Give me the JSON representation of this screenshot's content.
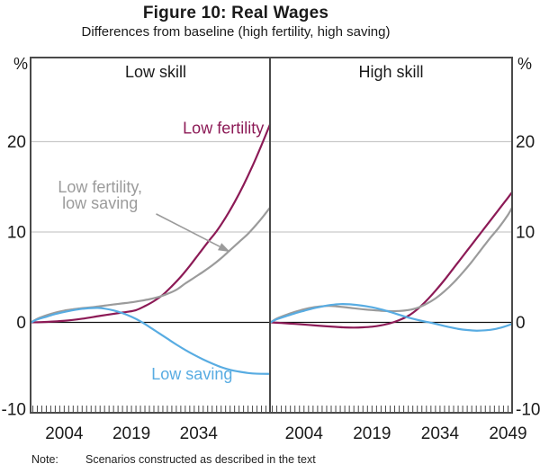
{
  "header": {
    "title": "Figure 10: Real Wages",
    "subtitle": "Differences from baseline (high fertility, high saving)"
  },
  "note": {
    "label": "Note:",
    "text": "Scenarios constructed as described in the text"
  },
  "colors": {
    "crimson": "#8C1A56",
    "gray": "#9B9B9B",
    "blue": "#58ACE2",
    "grid": "#C9C9C9",
    "axis": "#4A4A4A",
    "zero": "#111111",
    "text": "#1A1A1A"
  },
  "chart_data": {
    "type": "line",
    "unit_label": "%",
    "ylim": [
      -10,
      29.3
    ],
    "yticks": [
      20,
      10,
      0,
      -10
    ],
    "gridlines": [
      20,
      10
    ],
    "zero_line": 0,
    "xlim": [
      1996.5,
      2049.9
    ],
    "minor_tick_start": 1997,
    "minor_tick_end": 2049,
    "minor_tick_step": 1,
    "legend_note": "labels drawn inside panels",
    "panels": [
      {
        "title": "Low skill",
        "xticks": [
          2004,
          2019,
          2034
        ],
        "series": [
          {
            "id": "low-fertility",
            "name": "Low fertility",
            "color": "crimson",
            "points": [
              [
                1996.6,
                0
              ],
              [
                2000,
                0.05
              ],
              [
                2004,
                0.17
              ],
              [
                2008,
                0.4
              ],
              [
                2012,
                0.72
              ],
              [
                2016,
                1.02
              ],
              [
                2018,
                1.16
              ],
              [
                2020,
                1.35
              ],
              [
                2022,
                1.8
              ],
              [
                2024,
                2.35
              ],
              [
                2026,
                3.05
              ],
              [
                2028,
                4.0
              ],
              [
                2030,
                5.05
              ],
              [
                2032,
                6.25
              ],
              [
                2034,
                7.55
              ],
              [
                2036,
                8.85
              ],
              [
                2038,
                10.1
              ],
              [
                2040,
                11.6
              ],
              [
                2042,
                13.3
              ],
              [
                2044,
                15.2
              ],
              [
                2046,
                17.3
              ],
              [
                2048,
                19.6
              ],
              [
                2049.9,
                21.9
              ]
            ]
          },
          {
            "id": "low-fertility-low-saving",
            "name": "Low fertility, low saving",
            "color": "gray",
            "points": [
              [
                1996.6,
                0
              ],
              [
                1998,
                0.4
              ],
              [
                2000,
                0.78
              ],
              [
                2002,
                1.08
              ],
              [
                2004,
                1.3
              ],
              [
                2006,
                1.45
              ],
              [
                2007.5,
                1.55
              ],
              [
                2009,
                1.62
              ],
              [
                2011,
                1.72
              ],
              [
                2013,
                1.85
              ],
              [
                2015,
                1.98
              ],
              [
                2017,
                2.1
              ],
              [
                2019,
                2.22
              ],
              [
                2021,
                2.38
              ],
              [
                2023,
                2.56
              ],
              [
                2025,
                2.8
              ],
              [
                2027,
                3.15
              ],
              [
                2029,
                3.6
              ],
              [
                2031,
                4.3
              ],
              [
                2033,
                4.95
              ],
              [
                2035,
                5.6
              ],
              [
                2037,
                6.3
              ],
              [
                2039,
                7.1
              ],
              [
                2041,
                8.0
              ],
              [
                2043,
                8.9
              ],
              [
                2045,
                9.8
              ],
              [
                2047,
                10.9
              ],
              [
                2048.5,
                11.8
              ],
              [
                2049.9,
                12.7
              ]
            ]
          },
          {
            "id": "low-saving",
            "name": "Low saving",
            "color": "blue",
            "points": [
              [
                1996.6,
                0
              ],
              [
                1998,
                0.32
              ],
              [
                2000,
                0.62
              ],
              [
                2002,
                0.92
              ],
              [
                2004,
                1.15
              ],
              [
                2006,
                1.35
              ],
              [
                2008,
                1.5
              ],
              [
                2010,
                1.58
              ],
              [
                2011.5,
                1.6
              ],
              [
                2013,
                1.52
              ],
              [
                2015,
                1.32
              ],
              [
                2017,
                1.02
              ],
              [
                2019,
                0.62
              ],
              [
                2021,
                0.12
              ],
              [
                2023,
                -0.5
              ],
              [
                2025,
                -1.15
              ],
              [
                2027,
                -1.8
              ],
              [
                2029,
                -2.45
              ],
              [
                2031,
                -3.05
              ],
              [
                2033,
                -3.6
              ],
              [
                2035,
                -4.1
              ],
              [
                2037,
                -4.55
              ],
              [
                2039,
                -4.95
              ],
              [
                2041,
                -5.25
              ],
              [
                2043,
                -5.45
              ],
              [
                2045,
                -5.6
              ],
              [
                2047,
                -5.68
              ],
              [
                2049.9,
                -5.7
              ]
            ]
          }
        ],
        "annotations": [
          {
            "id": "low-fertility",
            "lines": [
              "Low fertility"
            ],
            "color": "crimson",
            "anchor": [
              2039.5,
              21.5
            ]
          },
          {
            "id": "low-fertility-low-saving",
            "lines": [
              "Low fertility,",
              "low saving"
            ],
            "color": "gray",
            "anchor": [
              2012,
              14.1
            ],
            "arrow": {
              "from": [
                2024.5,
                12.0
              ],
              "to": [
                2041,
                7.8
              ]
            }
          },
          {
            "id": "low-saving",
            "lines": [
              "Low saving"
            ],
            "color": "blue",
            "anchor": [
              2032.5,
              -5.7
            ]
          }
        ]
      },
      {
        "title": "High skill",
        "xticks": [
          2004,
          2019,
          2034,
          2049
        ],
        "series": [
          {
            "id": "low-fertility",
            "name": "Low fertility",
            "color": "crimson",
            "points": [
              [
                1996.6,
                0
              ],
              [
                1999,
                -0.07
              ],
              [
                2002,
                -0.17
              ],
              [
                2005,
                -0.28
              ],
              [
                2008,
                -0.4
              ],
              [
                2011,
                -0.5
              ],
              [
                2013,
                -0.56
              ],
              [
                2015,
                -0.58
              ],
              [
                2017,
                -0.55
              ],
              [
                2019,
                -0.48
              ],
              [
                2021,
                -0.33
              ],
              [
                2023,
                -0.1
              ],
              [
                2025,
                0.25
              ],
              [
                2027,
                0.72
              ],
              [
                2029,
                1.45
              ],
              [
                2031,
                2.4
              ],
              [
                2033,
                3.5
              ],
              [
                2035,
                4.7
              ],
              [
                2037,
                6.0
              ],
              [
                2039,
                7.3
              ],
              [
                2041,
                8.6
              ],
              [
                2043,
                9.9
              ],
              [
                2045,
                11.2
              ],
              [
                2047,
                12.5
              ],
              [
                2049,
                13.8
              ],
              [
                2049.9,
                14.4
              ]
            ]
          },
          {
            "id": "low-fertility-low-saving",
            "name": "Low fertility, low saving",
            "color": "gray",
            "points": [
              [
                1996.6,
                0
              ],
              [
                1998,
                0.42
              ],
              [
                2000,
                0.82
              ],
              [
                2002,
                1.16
              ],
              [
                2004,
                1.45
              ],
              [
                2006,
                1.66
              ],
              [
                2008,
                1.78
              ],
              [
                2009.5,
                1.82
              ],
              [
                2011,
                1.78
              ],
              [
                2013,
                1.68
              ],
              [
                2015,
                1.56
              ],
              [
                2017,
                1.45
              ],
              [
                2019,
                1.36
              ],
              [
                2021,
                1.28
              ],
              [
                2023,
                1.24
              ],
              [
                2025,
                1.26
              ],
              [
                2027,
                1.36
              ],
              [
                2029,
                1.6
              ],
              [
                2031,
                2.05
              ],
              [
                2033,
                2.65
              ],
              [
                2035,
                3.45
              ],
              [
                2037,
                4.4
              ],
              [
                2039,
                5.5
              ],
              [
                2041,
                6.7
              ],
              [
                2043,
                8.0
              ],
              [
                2045,
                9.3
              ],
              [
                2047,
                10.5
              ],
              [
                2049,
                11.9
              ],
              [
                2049.9,
                12.7
              ]
            ]
          },
          {
            "id": "low-saving",
            "name": "Low saving",
            "color": "blue",
            "points": [
              [
                1996.6,
                0
              ],
              [
                1998,
                0.35
              ],
              [
                2000,
                0.68
              ],
              [
                2002,
                1.0
              ],
              [
                2004,
                1.28
              ],
              [
                2006,
                1.55
              ],
              [
                2008,
                1.76
              ],
              [
                2010,
                1.93
              ],
              [
                2012,
                2.02
              ],
              [
                2014,
                2.0
              ],
              [
                2016,
                1.9
              ],
              [
                2018,
                1.76
              ],
              [
                2020,
                1.56
              ],
              [
                2022,
                1.3
              ],
              [
                2024,
                1.0
              ],
              [
                2026,
                0.68
              ],
              [
                2028,
                0.4
              ],
              [
                2030,
                0.16
              ],
              [
                2032,
                -0.04
              ],
              [
                2034,
                -0.28
              ],
              [
                2036,
                -0.52
              ],
              [
                2038,
                -0.72
              ],
              [
                2040,
                -0.85
              ],
              [
                2042,
                -0.92
              ],
              [
                2044,
                -0.88
              ],
              [
                2046,
                -0.75
              ],
              [
                2048,
                -0.5
              ],
              [
                2049.5,
                -0.25
              ],
              [
                2049.9,
                -0.15
              ]
            ]
          }
        ],
        "annotations": []
      }
    ]
  }
}
